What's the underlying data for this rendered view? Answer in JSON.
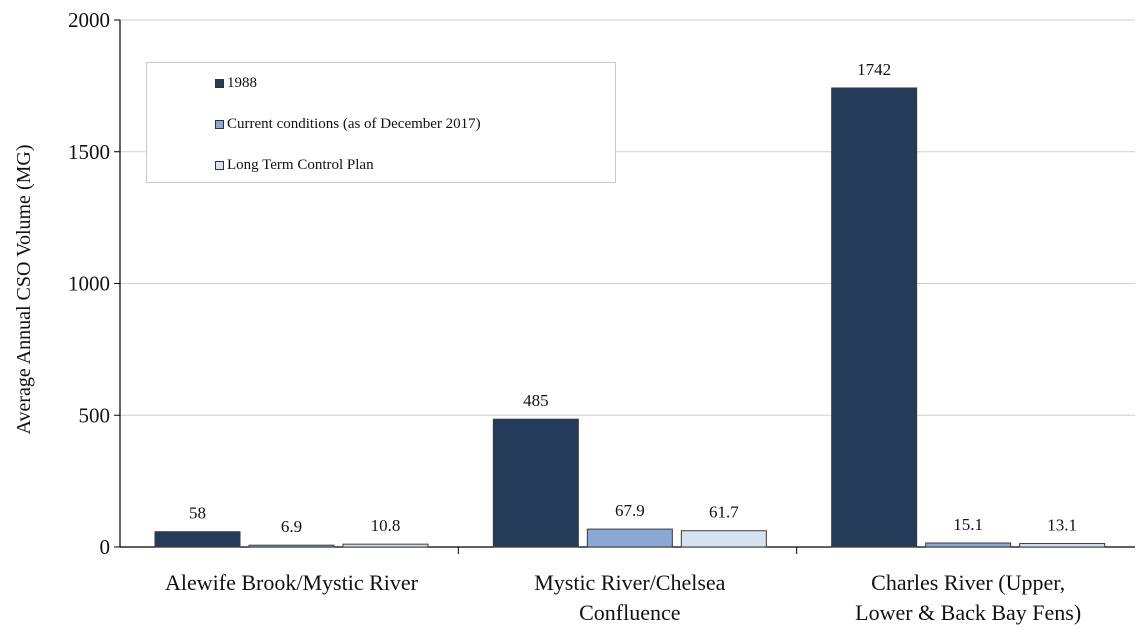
{
  "chart_data": {
    "type": "bar",
    "title": "",
    "xlabel": "",
    "ylabel": "Average Annual CSO Volume (MG)",
    "ylim": [
      0,
      2000
    ],
    "yticks": [
      0,
      500,
      1000,
      1500,
      2000
    ],
    "grid": true,
    "legend_position": "top-left",
    "categories": [
      [
        "Alewife Brook/Mystic River"
      ],
      [
        "Mystic River/Chelsea",
        "Confluence"
      ],
      [
        "Charles River (Upper,",
        "Lower & Back Bay Fens)"
      ]
    ],
    "series": [
      {
        "name": "1988",
        "color": "#243b5a",
        "values": [
          58,
          485,
          1742
        ],
        "labels": [
          "58",
          "485",
          "1742"
        ]
      },
      {
        "name": "Current conditions (as of December 2017)",
        "color": "#8aa8d2",
        "values": [
          6.9,
          67.9,
          15.1
        ],
        "labels": [
          "6.9",
          "67.9",
          "15.1"
        ]
      },
      {
        "name": "Long Term Control Plan",
        "color": "#d6e2f0",
        "values": [
          10.8,
          61.7,
          13.1
        ],
        "labels": [
          "10.8",
          "61.7",
          "13.1"
        ]
      }
    ]
  }
}
